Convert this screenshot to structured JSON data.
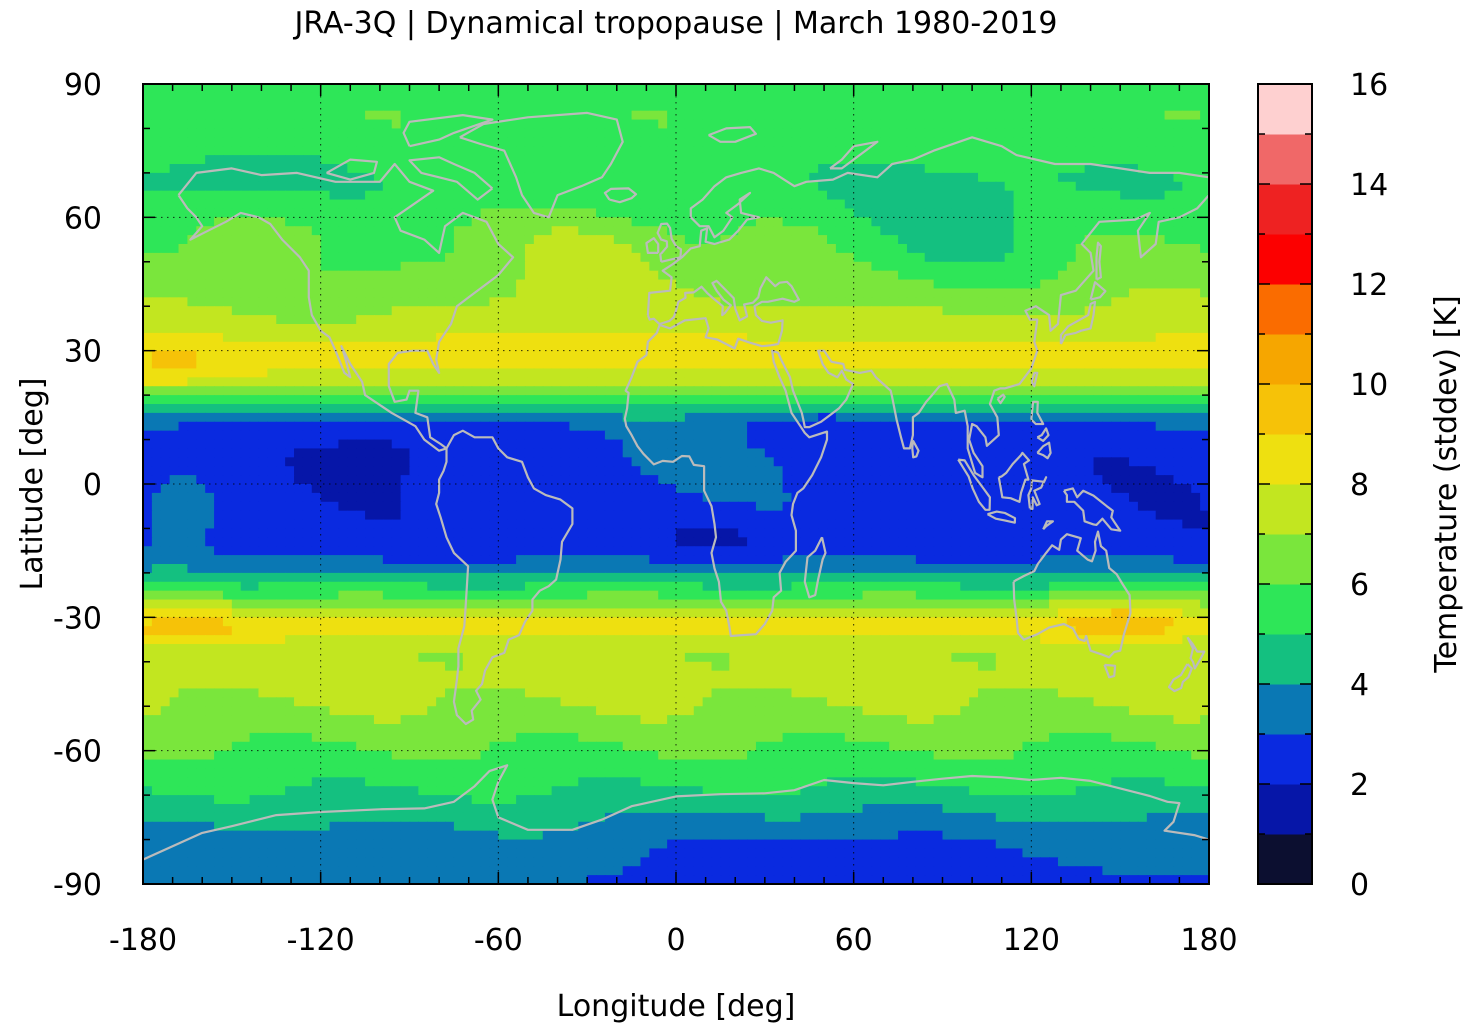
{
  "chart_data": {
    "type": "heatmap",
    "title": "JRA-3Q | Dynamical tropopause | March 1980-2019",
    "xlabel": "Longitude [deg]",
    "ylabel": "Latitude [deg]",
    "colorbar_label": "Temperature (stddev) [K]",
    "xlim": [
      -180,
      180
    ],
    "ylim": [
      -90,
      90
    ],
    "x_ticks": [
      -180,
      -120,
      -60,
      0,
      60,
      120,
      180
    ],
    "y_ticks": [
      90,
      60,
      30,
      0,
      -30,
      -60,
      -90
    ],
    "x_tick_labels": [
      "-180",
      "-120",
      "-60",
      "0",
      "60",
      "120",
      "180"
    ],
    "y_tick_labels": [
      "90",
      "60",
      "30",
      "0",
      "-30",
      "-60",
      "-90"
    ],
    "colorbar": {
      "min": 0,
      "max": 16,
      "step": 1,
      "ticks": [
        0,
        2,
        4,
        6,
        8,
        10,
        12,
        14,
        16
      ],
      "tick_labels": [
        "0",
        "2",
        "4",
        "6",
        "8",
        "10",
        "12",
        "14",
        "16"
      ],
      "colors": [
        "#0c0f30",
        "#0616a8",
        "#0a2ae0",
        "#0a78b4",
        "#14c080",
        "#2ee658",
        "#7ae63c",
        "#c2e620",
        "#eee010",
        "#f6c208",
        "#f6a600",
        "#fa6c00",
        "#fc0000",
        "#ee2222",
        "#f06868",
        "#fed0d0"
      ]
    },
    "grid": "dotted",
    "coastlines_color": "#bbbbbb",
    "zonal_profile": {
      "description_lat": [
        -90,
        -85,
        -78,
        -72,
        -66,
        -60,
        -52,
        -45,
        -38,
        -32,
        -27,
        -22,
        -18,
        -14,
        -10,
        0,
        10,
        14,
        17,
        20,
        24,
        30,
        35,
        42,
        50,
        56,
        62,
        68,
        75,
        82,
        90
      ],
      "value_K": [
        3.0,
        3.3,
        3.8,
        4.6,
        5.4,
        5.9,
        6.8,
        7.3,
        7.1,
        8.6,
        6.8,
        4.6,
        3.2,
        2.4,
        2.3,
        2.2,
        2.4,
        3.0,
        4.4,
        5.8,
        7.6,
        8.6,
        7.6,
        7.0,
        6.4,
        6.2,
        5.6,
        5.2,
        5.5,
        5.9,
        5.8
      ]
    }
  }
}
